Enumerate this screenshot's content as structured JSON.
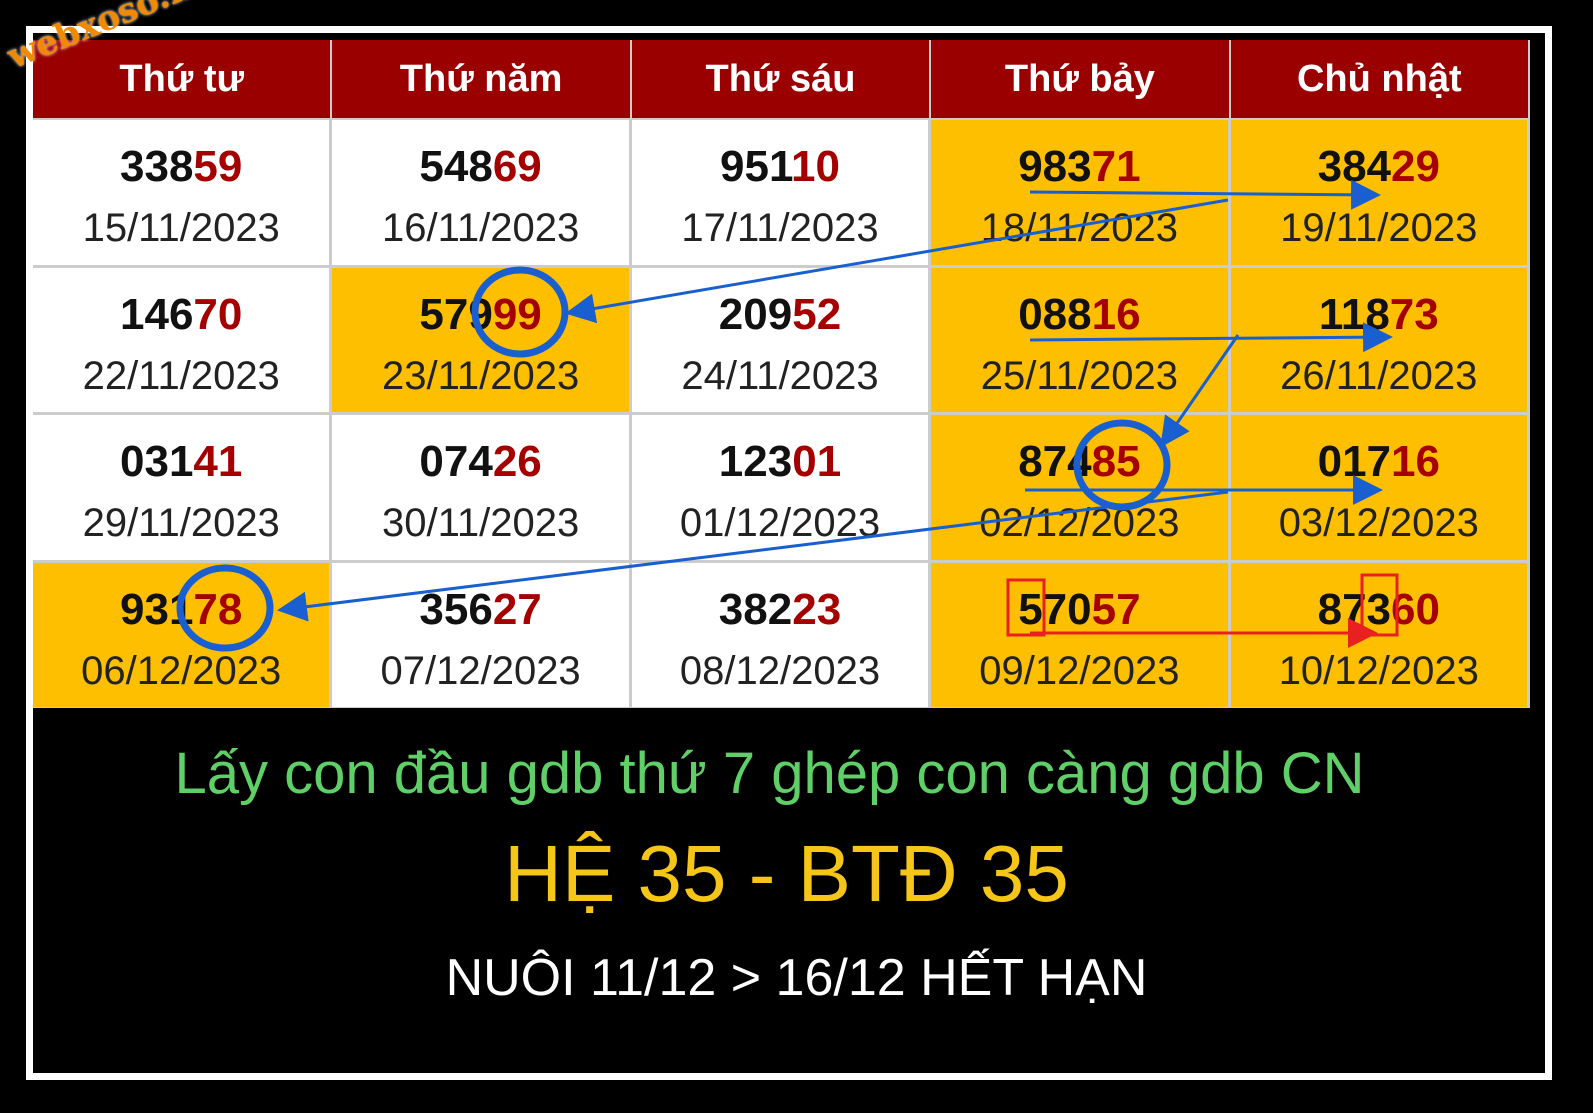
{
  "watermark": "webxoso.net",
  "table": {
    "header": [
      "Thứ tư",
      "Thứ năm",
      "Thứ sáu",
      "Thứ bảy",
      "Chủ nhật"
    ],
    "rows": [
      [
        {
          "head": "338",
          "tail": "59",
          "date": "15/11/2023",
          "highlight": false
        },
        {
          "head": "548",
          "tail": "69",
          "date": "16/11/2023",
          "highlight": false
        },
        {
          "head": "951",
          "tail": "10",
          "date": "17/11/2023",
          "highlight": false
        },
        {
          "head": "983",
          "tail": "71",
          "date": "18/11/2023",
          "highlight": true
        },
        {
          "head": "384",
          "tail": "29",
          "date": "19/11/2023",
          "highlight": true
        }
      ],
      [
        {
          "head": "146",
          "tail": "70",
          "date": "22/11/2023",
          "highlight": false
        },
        {
          "head": "579",
          "tail": "99",
          "date": "23/11/2023",
          "highlight": true
        },
        {
          "head": "209",
          "tail": "52",
          "date": "24/11/2023",
          "highlight": false
        },
        {
          "head": "088",
          "tail": "16",
          "date": "25/11/2023",
          "highlight": true
        },
        {
          "head": "118",
          "tail": "73",
          "date": "26/11/2023",
          "highlight": true
        }
      ],
      [
        {
          "head": "031",
          "tail": "41",
          "date": "29/11/2023",
          "highlight": false
        },
        {
          "head": "074",
          "tail": "26",
          "date": "30/11/2023",
          "highlight": false
        },
        {
          "head": "123",
          "tail": "01",
          "date": "01/12/2023",
          "highlight": false
        },
        {
          "head": "874",
          "tail": "85",
          "date": "02/12/2023",
          "highlight": true
        },
        {
          "head": "017",
          "tail": "16",
          "date": "03/12/2023",
          "highlight": true
        }
      ],
      [
        {
          "head": "931",
          "tail": "78",
          "date": "06/12/2023",
          "highlight": true
        },
        {
          "head": "356",
          "tail": "27",
          "date": "07/12/2023",
          "highlight": false
        },
        {
          "head": "382",
          "tail": "23",
          "date": "08/12/2023",
          "highlight": false
        },
        {
          "head": "570",
          "tail": "57",
          "date": "09/12/2023",
          "highlight": true
        },
        {
          "head": "873",
          "tail": "60",
          "date": "10/12/2023",
          "highlight": true
        }
      ]
    ]
  },
  "notes": {
    "method": "Lấy con đầu gdb thứ 7 ghép con càng gdb CN",
    "result": "HỆ 35 - BTĐ 35",
    "period": "NUÔI 11/12 > 16/12 HẾT HẠN"
  }
}
